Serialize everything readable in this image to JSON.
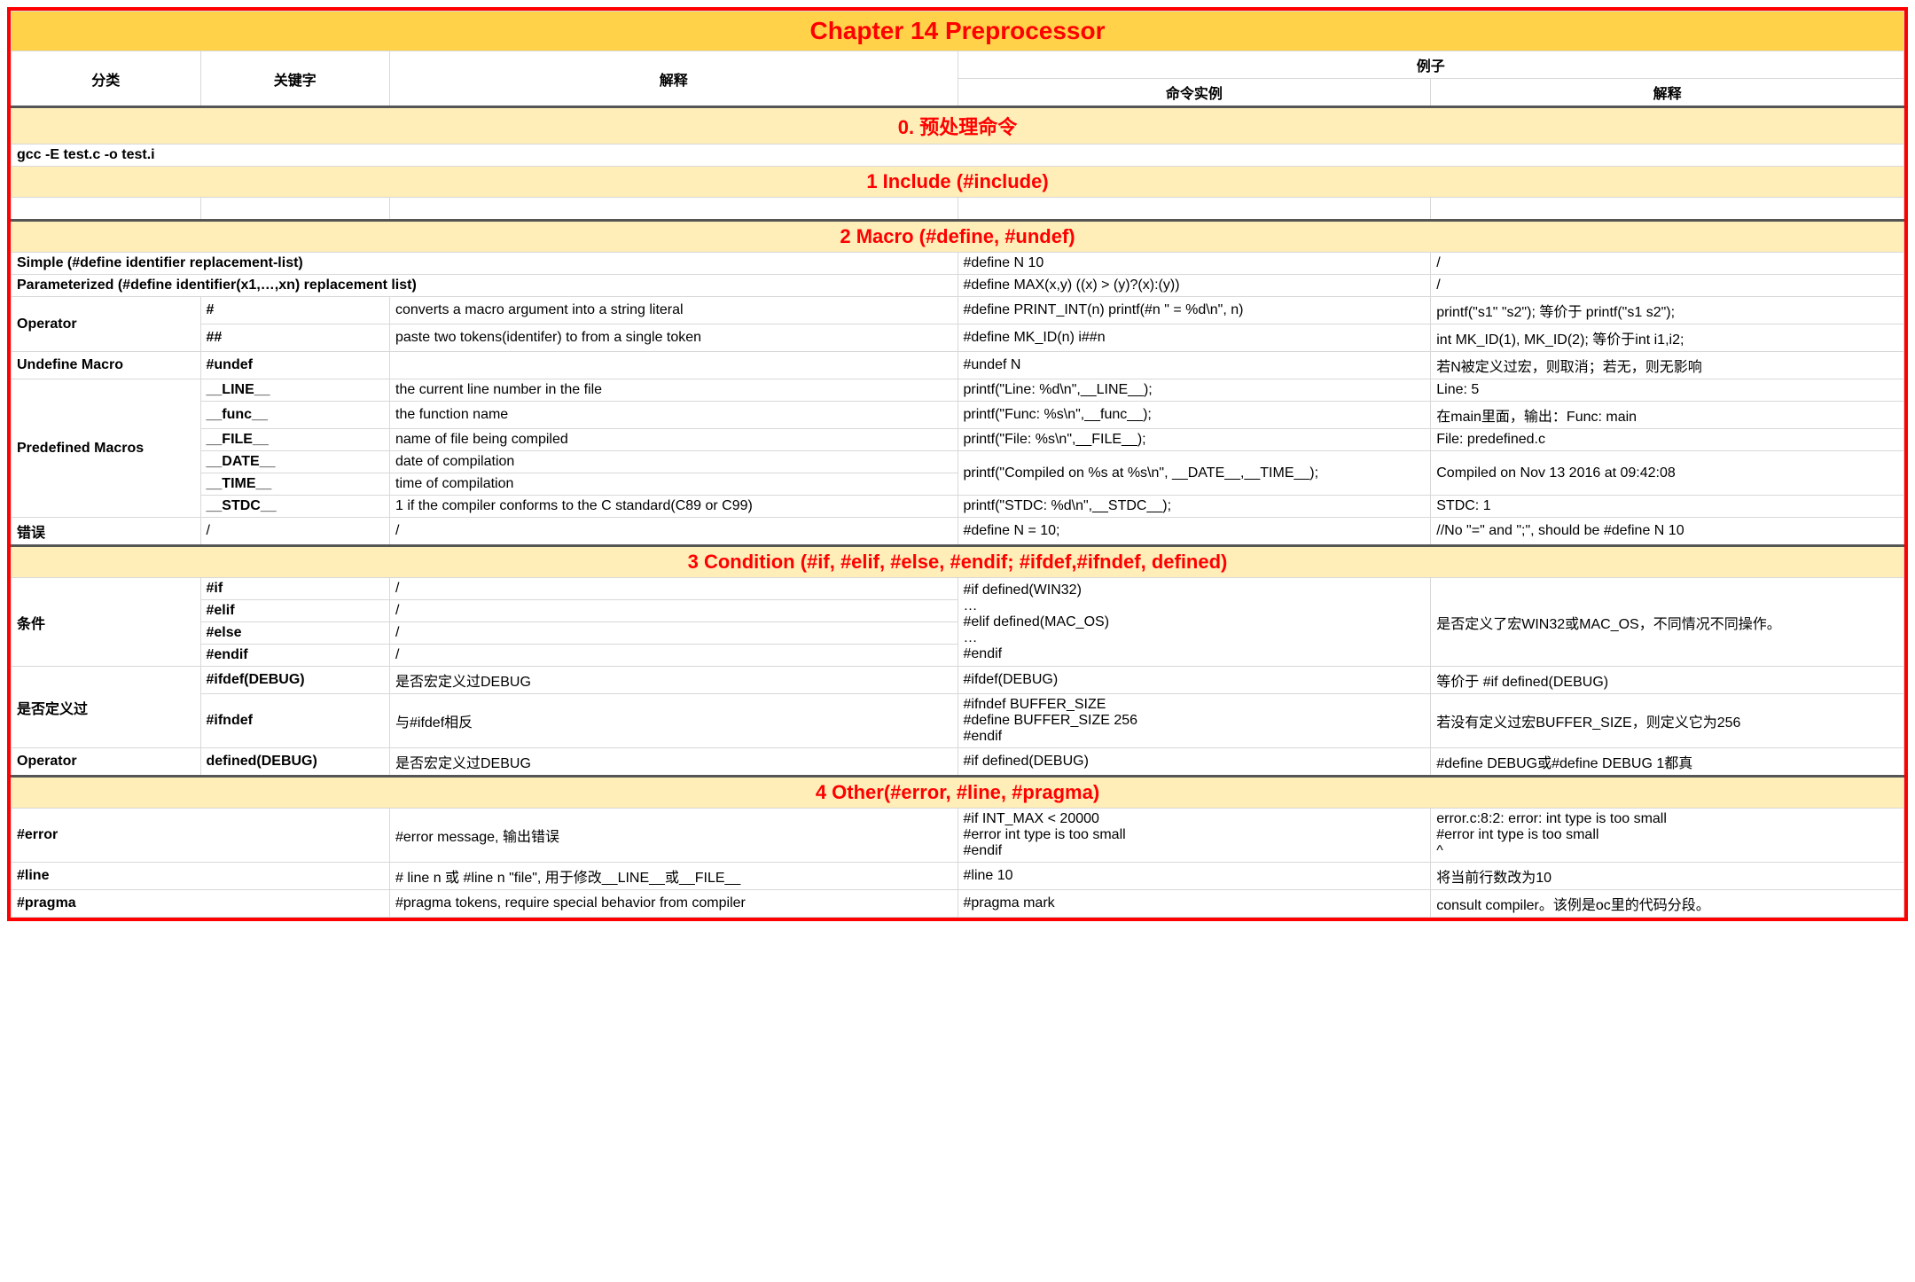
{
  "title": "Chapter 14 Preprocessor",
  "headers": {
    "category": "分类",
    "keyword": "关键字",
    "explain": "解释",
    "example": "例子",
    "example_cmd": "命令实例",
    "example_explain": "解释"
  },
  "sections": {
    "s0": "0. 预处理命令",
    "s1": "1 Include (#include)",
    "s2": "2 Macro (#define, #undef)",
    "s3": "3 Condition (#if, #elif, #else, #endif; #ifdef,#ifndef, defined)",
    "s4": "4 Other(#error, #line, #pragma)"
  },
  "s0_row": "gcc -E test.c -o test.i",
  "macro": {
    "simple": {
      "label": "Simple (#define identifier replacement-list)",
      "example": "#define N 10",
      "result": "/"
    },
    "param": {
      "label": "Parameterized (#define identifier(x1,…,xn) replacement list)",
      "example": "#define MAX(x,y) ((x) > (y)?(x):(y))",
      "result": "/"
    },
    "operator_label": "Operator",
    "op_hash": {
      "kw": "#",
      "desc": "converts a macro argument into a string literal",
      "example": "#define PRINT_INT(n) printf(#n \" = %d\\n\", n)",
      "result": "printf(\"s1\" \"s2\"); 等价于 printf(\"s1 s2\");"
    },
    "op_hashhash": {
      "kw": "##",
      "desc": "paste two tokens(identifer) to from a single token",
      "example": "#define MK_ID(n) i##n",
      "result": "int MK_ID(1), MK_ID(2); 等价于int i1,i2;"
    },
    "undef": {
      "label": "Undefine Macro",
      "kw": "#undef",
      "desc": "",
      "example": "#undef N",
      "result": "若N被定义过宏，则取消；若无，则无影响"
    },
    "predef_label": "Predefined Macros",
    "line": {
      "kw": "__LINE__",
      "desc": "the current line number in the file",
      "example": "printf(\"Line: %d\\n\",__LINE__);",
      "result": "Line: 5"
    },
    "func": {
      "kw": "__func__",
      "desc": "the function name",
      "example": "printf(\"Func: %s\\n\",__func__);",
      "result": "在main里面，输出：Func: main"
    },
    "file": {
      "kw": "__FILE__",
      "desc": "name of file being compiled",
      "example": "printf(\"File: %s\\n\",__FILE__);",
      "result": "File: predefined.c"
    },
    "date": {
      "kw": "__DATE__",
      "desc": "date of compilation",
      "example": "printf(\"Compiled on %s at %s\\n\", __DATE__,__TIME__);",
      "result": "Compiled on Nov 13 2016 at 09:42:08"
    },
    "time": {
      "kw": "__TIME__",
      "desc": "time of compilation"
    },
    "stdc": {
      "kw": "__STDC__",
      "desc": "1 if the compiler conforms to the C standard(C89 or C99)",
      "example": "printf(\"STDC: %d\\n\",__STDC__);",
      "result": "STDC: 1"
    },
    "err": {
      "label": "错误",
      "kw": "/",
      "desc": "/",
      "example": "#define N = 10;",
      "result": "//No \"=\" and \";\", should be #define N 10"
    }
  },
  "cond": {
    "cond_label": "条件",
    "if": {
      "kw": "#if",
      "desc": "/"
    },
    "elif": {
      "kw": "#elif",
      "desc": "/"
    },
    "else": {
      "kw": "#else",
      "desc": "/"
    },
    "endif": {
      "kw": "#endif",
      "desc": "/"
    },
    "cond_example": "#if defined(WIN32)\n…\n#elif defined(MAC_OS)\n…\n#endif",
    "cond_result": "是否定义了宏WIN32或MAC_OS，不同情况不同操作。",
    "defined_label": "是否定义过",
    "ifdef": {
      "kw": "#ifdef(DEBUG)",
      "desc": "是否宏定义过DEBUG",
      "example": "#ifdef(DEBUG)",
      "result": "等价于 #if defined(DEBUG)"
    },
    "ifndef": {
      "kw": "#ifndef",
      "desc": "与#ifdef相反",
      "example": " #ifndef BUFFER_SIZE\n #define BUFFER_SIZE 256\n #endif",
      "result": " 若没有定义过宏BUFFER_SIZE，则定义它为256"
    },
    "operator_label": "Operator",
    "defined_op": {
      "kw": "defined(DEBUG)",
      "desc": "是否宏定义过DEBUG",
      "example": "#if defined(DEBUG)",
      "result": "#define DEBUG或#define DEBUG 1都真"
    }
  },
  "other": {
    "error": {
      "kw": "#error",
      "desc": "#error message, 输出错误",
      "example": " #if INT_MAX < 20000\n #error int type is too small\n #endif",
      "result": "error.c:8:2: error: int type is too small\n #error int type is too small\n  ^"
    },
    "line": {
      "kw": "#line",
      "desc": "# line n 或 #line n \"file\", 用于修改__LINE__或__FILE__",
      "example": "#line 10",
      "result": "将当前行数改为10"
    },
    "pragma": {
      "kw": "#pragma",
      "desc": "#pragma tokens, require special behavior from compiler",
      "example": "#pragma mark",
      "result": "consult compiler。该例是oc里的代码分段。"
    }
  },
  "styling": {
    "border_color": "#ff0000",
    "title_bg": "#ffd24a",
    "section_bg": "#ffeeb8",
    "accent_text": "#ff0000",
    "cell_border": "#d8d8d8",
    "thick_border": "#555555",
    "title_fontsize": 28,
    "section_fontsize": 22,
    "body_fontsize": 16,
    "column_widths_pct": [
      10,
      10,
      30,
      25,
      25
    ]
  }
}
